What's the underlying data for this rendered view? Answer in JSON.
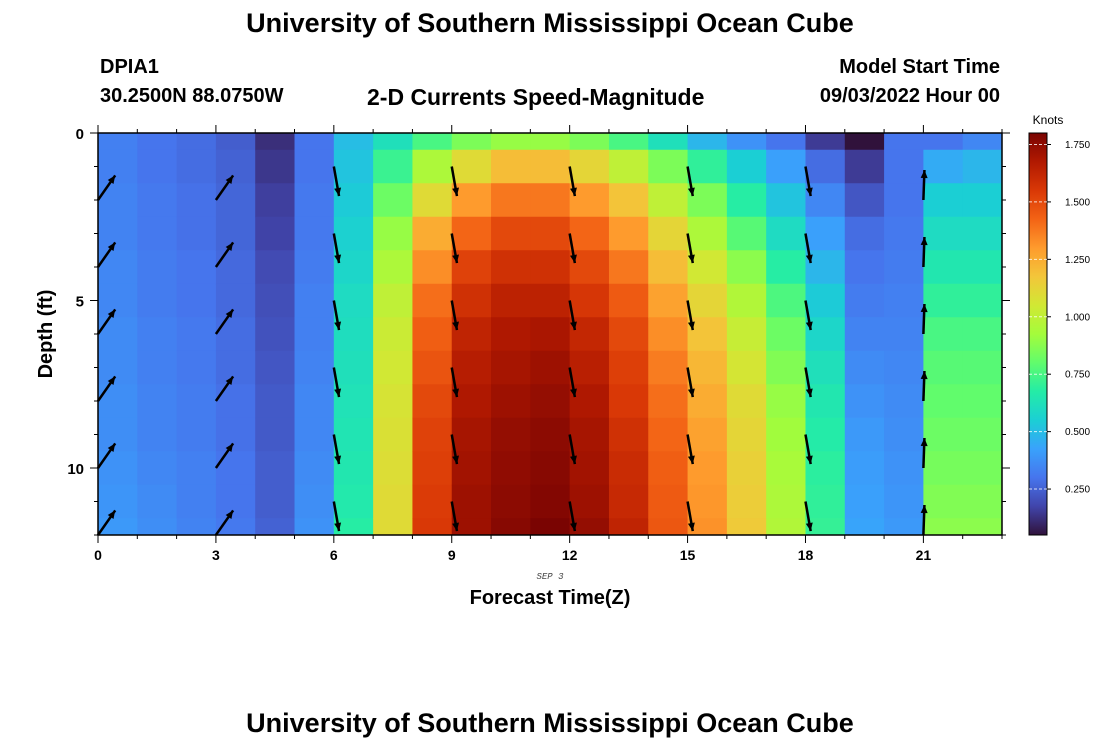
{
  "header": {
    "title": "University of Southern Mississippi Ocean Cube",
    "station_id": "DPIA1",
    "coordinates": "30.2500N  88.0750W",
    "subtitle": "2-D Currents Speed-Magnitude",
    "model_start_label": "Model Start Time",
    "model_start_value": "09/03/2022 Hour 00"
  },
  "footer": {
    "title": "University of Southern Mississippi Ocean Cube"
  },
  "chart_data": {
    "type": "heatmap",
    "xlabel": "Forecast Time(Z)",
    "ylabel": "Depth (ft)",
    "date_label": "SEP 3",
    "colorbar_label": "Knots",
    "x_range": [
      0,
      23
    ],
    "y_range": [
      0,
      12
    ],
    "y_reversed": true,
    "x_ticks": [
      0,
      3,
      6,
      9,
      12,
      15,
      18,
      21
    ],
    "x_minor_step": 1,
    "y_ticks": [
      0,
      5,
      10
    ],
    "y_minor_step": 1,
    "colorbar_range": [
      0.05,
      1.8
    ],
    "colorbar_ticks": [
      "0.250",
      "0.500",
      "0.750",
      "1.000",
      "1.250",
      "1.500",
      "1.750"
    ],
    "colormap": [
      "#30123b",
      "#4145ab",
      "#4675ed",
      "#39a2fc",
      "#1bcfd4",
      "#24eca6",
      "#61fc6c",
      "#a4fc3b",
      "#d1e834",
      "#f3c63a",
      "#fe9b2d",
      "#f36315",
      "#d93806",
      "#b11901",
      "#7a0402"
    ],
    "depths_ft": [
      0,
      1,
      2,
      3,
      4,
      5,
      6,
      7,
      8,
      9,
      10,
      11,
      12
    ],
    "speed_profiles": [
      {
        "hour": 0,
        "speeds": [
          0.33,
          0.33,
          0.34,
          0.34,
          0.35,
          0.35,
          0.36,
          0.36,
          0.37,
          0.37,
          0.38,
          0.39,
          0.4
        ]
      },
      {
        "hour": 1,
        "speeds": [
          0.3,
          0.3,
          0.31,
          0.31,
          0.32,
          0.32,
          0.33,
          0.33,
          0.34,
          0.34,
          0.35,
          0.36,
          0.37
        ]
      },
      {
        "hour": 2,
        "speeds": [
          0.28,
          0.28,
          0.29,
          0.29,
          0.3,
          0.3,
          0.31,
          0.31,
          0.32,
          0.32,
          0.33,
          0.33,
          0.34
        ]
      },
      {
        "hour": 3,
        "speeds": [
          0.24,
          0.25,
          0.26,
          0.26,
          0.27,
          0.27,
          0.28,
          0.28,
          0.29,
          0.29,
          0.3,
          0.3,
          0.31
        ]
      },
      {
        "hour": 4,
        "speeds": [
          0.12,
          0.14,
          0.16,
          0.17,
          0.19,
          0.2,
          0.21,
          0.22,
          0.23,
          0.23,
          0.24,
          0.24,
          0.25
        ]
      },
      {
        "hour": 5,
        "speeds": [
          0.3,
          0.3,
          0.31,
          0.31,
          0.32,
          0.33,
          0.33,
          0.34,
          0.35,
          0.35,
          0.36,
          0.37,
          0.38
        ]
      },
      {
        "hour": 6,
        "speeds": [
          0.5,
          0.52,
          0.54,
          0.56,
          0.58,
          0.6,
          0.61,
          0.62,
          0.63,
          0.64,
          0.65,
          0.66,
          0.68
        ]
      },
      {
        "hour": 7,
        "speeds": [
          0.62,
          0.72,
          0.82,
          0.9,
          0.95,
          1.0,
          1.03,
          1.05,
          1.07,
          1.08,
          1.09,
          1.1,
          1.1
        ]
      },
      {
        "hour": 8,
        "speeds": [
          0.75,
          0.95,
          1.1,
          1.25,
          1.33,
          1.4,
          1.44,
          1.47,
          1.5,
          1.52,
          1.53,
          1.54,
          1.55
        ]
      },
      {
        "hour": 9,
        "speeds": [
          0.85,
          1.1,
          1.3,
          1.42,
          1.52,
          1.58,
          1.63,
          1.66,
          1.68,
          1.7,
          1.71,
          1.72,
          1.72
        ]
      },
      {
        "hour": 10,
        "speeds": [
          0.9,
          1.2,
          1.38,
          1.5,
          1.58,
          1.64,
          1.68,
          1.7,
          1.72,
          1.74,
          1.75,
          1.76,
          1.77
        ]
      },
      {
        "hour": 11,
        "speeds": [
          0.9,
          1.2,
          1.38,
          1.5,
          1.58,
          1.64,
          1.69,
          1.72,
          1.74,
          1.76,
          1.77,
          1.78,
          1.8
        ]
      },
      {
        "hour": 12,
        "speeds": [
          0.85,
          1.12,
          1.3,
          1.42,
          1.5,
          1.56,
          1.62,
          1.65,
          1.68,
          1.7,
          1.71,
          1.72,
          1.74
        ]
      },
      {
        "hour": 13,
        "speeds": [
          0.75,
          1.0,
          1.18,
          1.3,
          1.38,
          1.45,
          1.5,
          1.53,
          1.55,
          1.58,
          1.6,
          1.61,
          1.63
        ]
      },
      {
        "hour": 14,
        "speeds": [
          0.62,
          0.85,
          1.0,
          1.12,
          1.2,
          1.28,
          1.33,
          1.37,
          1.4,
          1.42,
          1.44,
          1.45,
          1.46
        ]
      },
      {
        "hour": 15,
        "speeds": [
          0.48,
          0.7,
          0.85,
          0.95,
          1.05,
          1.12,
          1.18,
          1.22,
          1.25,
          1.28,
          1.3,
          1.31,
          1.32
        ]
      },
      {
        "hour": 16,
        "speeds": [
          0.38,
          0.55,
          0.68,
          0.78,
          0.88,
          0.96,
          1.02,
          1.06,
          1.1,
          1.12,
          1.14,
          1.15,
          1.16
        ]
      },
      {
        "hour": 17,
        "speeds": [
          0.3,
          0.42,
          0.52,
          0.6,
          0.68,
          0.76,
          0.82,
          0.86,
          0.9,
          0.92,
          0.94,
          0.95,
          0.96
        ]
      },
      {
        "hour": 18,
        "speeds": [
          0.15,
          0.28,
          0.35,
          0.42,
          0.48,
          0.54,
          0.58,
          0.62,
          0.65,
          0.67,
          0.69,
          0.7,
          0.71
        ]
      },
      {
        "hour": 19,
        "speeds": [
          0.05,
          0.15,
          0.22,
          0.28,
          0.3,
          0.32,
          0.34,
          0.36,
          0.38,
          0.4,
          0.41,
          0.42,
          0.43
        ]
      },
      {
        "hour": 20,
        "speeds": [
          0.3,
          0.3,
          0.3,
          0.31,
          0.32,
          0.33,
          0.34,
          0.35,
          0.36,
          0.37,
          0.38,
          0.39,
          0.4
        ]
      },
      {
        "hour": 21,
        "speeds": [
          0.3,
          0.45,
          0.55,
          0.6,
          0.65,
          0.7,
          0.75,
          0.78,
          0.8,
          0.82,
          0.84,
          0.86,
          0.88
        ]
      },
      {
        "hour": 22,
        "speeds": [
          0.35,
          0.48,
          0.55,
          0.6,
          0.65,
          0.7,
          0.75,
          0.78,
          0.8,
          0.82,
          0.84,
          0.86,
          0.88
        ]
      }
    ],
    "arrow_columns": [
      {
        "hour": 0,
        "depths": [
          2,
          4,
          6,
          8,
          10,
          12
        ],
        "direction_deg": 35
      },
      {
        "hour": 3,
        "depths": [
          2,
          4,
          6,
          8,
          10,
          12
        ],
        "direction_deg": 35
      },
      {
        "hour": 6,
        "depths": [
          1,
          3,
          5,
          7,
          9,
          11
        ],
        "direction_deg": 170
      },
      {
        "hour": 9,
        "depths": [
          1,
          3,
          5,
          7,
          9,
          11
        ],
        "direction_deg": 170
      },
      {
        "hour": 12,
        "depths": [
          1,
          3,
          5,
          7,
          9,
          11
        ],
        "direction_deg": 170
      },
      {
        "hour": 15,
        "depths": [
          1,
          3,
          5,
          7,
          9,
          11
        ],
        "direction_deg": 170
      },
      {
        "hour": 18,
        "depths": [
          1,
          3,
          5,
          7,
          9,
          11
        ],
        "direction_deg": 170
      },
      {
        "hour": 21,
        "depths": [
          2,
          4,
          6,
          8,
          10,
          12
        ],
        "direction_deg": 2
      }
    ]
  }
}
